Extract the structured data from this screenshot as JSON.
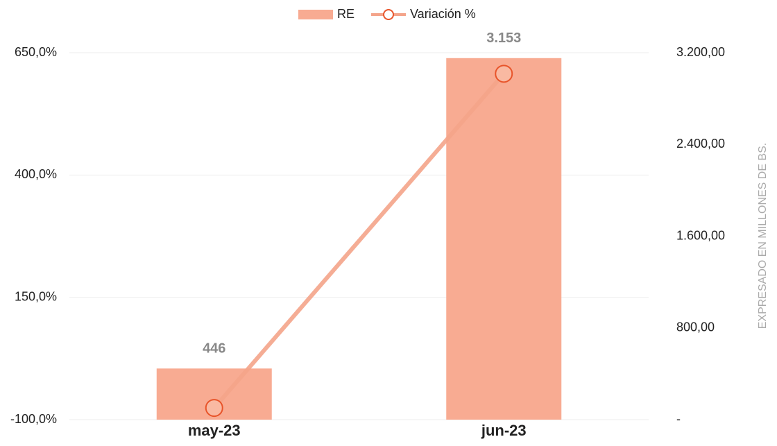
{
  "chart_data": {
    "type": "bar-line",
    "categories": [
      "may-23",
      "jun-23"
    ],
    "series": [
      {
        "name": "RE",
        "type": "bar",
        "axis": "y2",
        "color": "#f8ab92",
        "values": [
          446,
          3153
        ],
        "value_labels": [
          "446",
          "3.153"
        ]
      },
      {
        "name": "Variación %",
        "type": "line",
        "axis": "y",
        "color": "#f4a48a",
        "marker_edge_color": "#e8542a",
        "values": [
          -76,
          607
        ]
      }
    ],
    "ylim": [
      -100,
      650
    ],
    "yticks": [
      {
        "value": -100,
        "label": "-100,0%"
      },
      {
        "value": 150,
        "label": "150,0%"
      },
      {
        "value": 400,
        "label": "400,0%"
      },
      {
        "value": 650,
        "label": "650,0%"
      }
    ],
    "y2lim": [
      0,
      3200
    ],
    "y2ticks": [
      {
        "value": 0,
        "label": "-"
      },
      {
        "value": 800,
        "label": "800,00"
      },
      {
        "value": 1600,
        "label": "1.600,00"
      },
      {
        "value": 2400,
        "label": "2.400,00"
      },
      {
        "value": 3200,
        "label": "3.200,00"
      }
    ],
    "y2label": "EXPRESADO EN MILLONES DE BS.",
    "grid": true,
    "legend": "top"
  }
}
